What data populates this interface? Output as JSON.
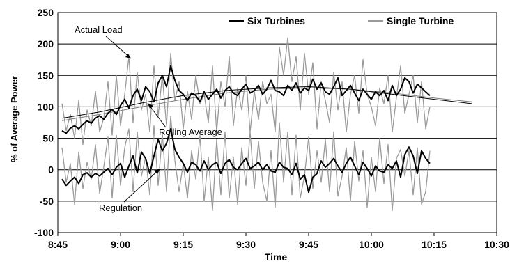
{
  "chart_data": {
    "type": "line",
    "title": "",
    "xlabel": "Time",
    "ylabel": "% of Average Power",
    "xlim_minutes": [
      0,
      105
    ],
    "ylim": [
      -100,
      250
    ],
    "x_tick_labels": [
      "8:45",
      "9:00",
      "9:15",
      "9:30",
      "9:45",
      "10:00",
      "10:15",
      "10:30"
    ],
    "x_tick_minutes": [
      0,
      15,
      30,
      45,
      60,
      75,
      90,
      105
    ],
    "y_ticks": [
      -100,
      -50,
      0,
      50,
      100,
      150,
      200,
      250
    ],
    "grid": "horizontal",
    "legend": {
      "placement": "top-right",
      "entries": [
        "Six Turbines",
        "Single Turbine"
      ]
    },
    "colors": {
      "six": "#000000",
      "single": "#9a9a9a"
    },
    "annotations": [
      "Actual Load",
      "Rolling Average",
      "Regulation"
    ],
    "sampling_note_minutes_step": 1,
    "series": [
      {
        "name": "Six Turbines",
        "group": "load",
        "x_start_minutes": 1,
        "x_step_minutes": 1,
        "values": [
          62,
          58,
          66,
          70,
          65,
          72,
          78,
          74,
          82,
          86,
          80,
          90,
          96,
          88,
          102,
          112,
          98,
          118,
          128,
          110,
          132,
          124,
          108,
          138,
          150,
          132,
          165,
          142,
          126,
          120,
          110,
          122,
          118,
          108,
          124,
          112,
          120,
          128,
          114,
          126,
          132,
          122,
          118,
          128,
          136,
          122,
          126,
          134,
          120,
          128,
          142,
          126,
          124,
          118,
          134,
          126,
          138,
          122,
          130,
          126,
          144,
          128,
          138,
          124,
          120,
          132,
          146,
          118,
          126,
          134,
          122,
          110,
          128,
          120,
          112,
          124,
          118,
          126,
          110,
          134,
          118,
          128,
          146,
          140,
          122,
          136,
          130,
          124,
          118
        ]
      },
      {
        "name": "Single Turbine",
        "group": "load",
        "x_start_minutes": 1,
        "x_step_minutes": 1,
        "values": [
          105,
          62,
          88,
          50,
          110,
          40,
          95,
          70,
          125,
          60,
          82,
          140,
          55,
          150,
          70,
          120,
          180,
          75,
          155,
          95,
          120,
          60,
          165,
          85,
          150,
          70,
          185,
          110,
          140,
          65,
          125,
          80,
          150,
          105,
          120,
          75,
          165,
          60,
          140,
          100,
          180,
          70,
          130,
          95,
          150,
          60,
          125,
          80,
          140,
          105,
          120,
          60,
          195,
          150,
          210,
          140,
          180,
          95,
          185,
          120,
          170,
          65,
          140,
          110,
          75,
          155,
          95,
          140,
          60,
          120,
          150,
          90,
          175,
          120,
          100,
          70,
          130,
          105,
          150,
          60,
          115,
          165,
          90,
          120,
          150,
          75,
          140,
          65,
          100
        ]
      },
      {
        "name": "Six Turbines",
        "group": "regulation",
        "x_start_minutes": 1,
        "x_step_minutes": 1,
        "values": [
          -15,
          -25,
          -18,
          -12,
          -22,
          -8,
          -5,
          -12,
          -6,
          -10,
          -4,
          2,
          -8,
          4,
          10,
          -12,
          6,
          22,
          -5,
          28,
          18,
          -6,
          22,
          48,
          30,
          42,
          65,
          32,
          20,
          10,
          -4,
          12,
          8,
          -2,
          14,
          0,
          8,
          12,
          -6,
          10,
          16,
          4,
          0,
          10,
          18,
          2,
          6,
          12,
          0,
          8,
          -2,
          -4,
          12,
          4,
          2,
          -8,
          10,
          -15,
          -8,
          -36,
          -12,
          -6,
          14,
          4,
          10,
          18,
          6,
          -4,
          10,
          20,
          6,
          -8,
          12,
          2,
          -10,
          6,
          -2,
          -4,
          8,
          2,
          14,
          -12,
          24,
          36,
          22,
          -6,
          30,
          18,
          10
        ]
      },
      {
        "name": "Single Turbine",
        "group": "regulation",
        "x_start_minutes": 1,
        "x_step_minutes": 1,
        "values": [
          35,
          -20,
          10,
          -55,
          28,
          -30,
          12,
          -15,
          40,
          -38,
          5,
          52,
          -45,
          55,
          -25,
          35,
          65,
          -35,
          60,
          -10,
          20,
          -40,
          70,
          -25,
          58,
          -35,
          85,
          15,
          -35,
          10,
          -45,
          30,
          -15,
          55,
          -50,
          20,
          -65,
          48,
          -40,
          60,
          -45,
          20,
          -55,
          35,
          -25,
          60,
          -30,
          45,
          -20,
          -50,
          30,
          -60,
          75,
          -20,
          60,
          -40,
          55,
          -45,
          -10,
          52,
          -30,
          30,
          -20,
          48,
          -35,
          60,
          -42,
          -10,
          35,
          -50,
          45,
          -18,
          30,
          -60,
          20,
          -35,
          50,
          -22,
          40,
          -65,
          18,
          32,
          -10,
          30,
          -40,
          35,
          -55,
          -35,
          30
        ]
      },
      {
        "name": "Rolling Average",
        "group": "average",
        "x": [
          1,
          10,
          20,
          30,
          40,
          50,
          60,
          70,
          80,
          90,
          99
        ],
        "values": [
          78,
          88,
          100,
          112,
          122,
          128,
          130,
          128,
          122,
          114,
          108
        ]
      },
      {
        "name": "Rolling Average",
        "group": "average",
        "x": [
          1,
          10,
          20,
          30,
          40,
          50,
          60,
          70,
          80,
          90,
          99
        ],
        "values": [
          82,
          92,
          106,
          118,
          126,
          130,
          132,
          128,
          120,
          112,
          105
        ]
      }
    ]
  }
}
